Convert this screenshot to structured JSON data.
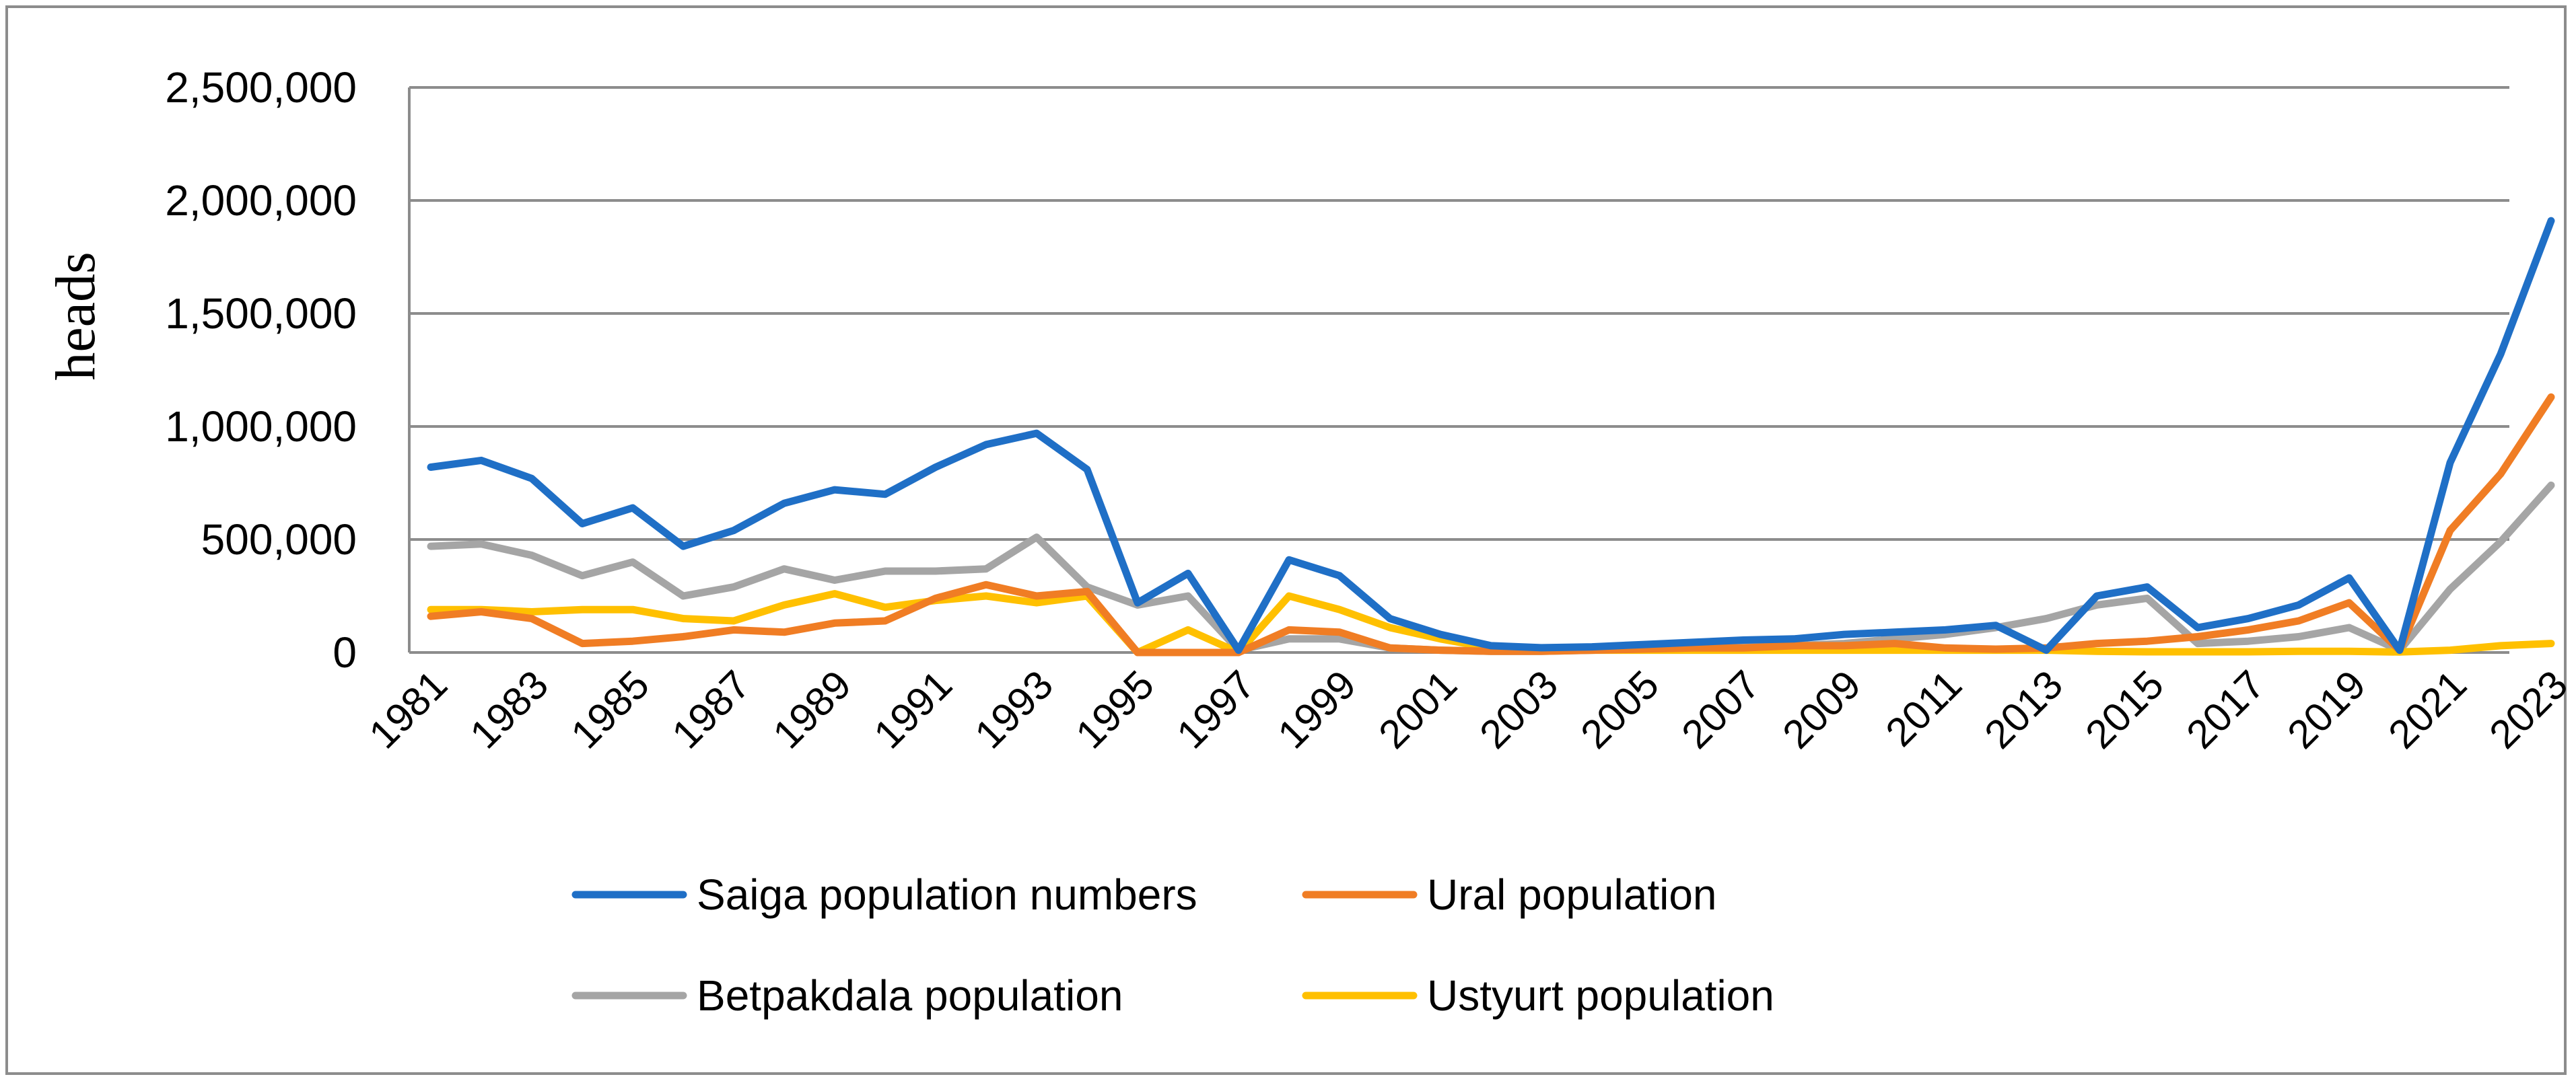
{
  "chart_data": {
    "type": "line",
    "title": "",
    "xlabel": "",
    "ylabel": "heads",
    "ylim": [
      0,
      2500000
    ],
    "y_ticks": [
      0,
      500000,
      1000000,
      1500000,
      2000000,
      2500000
    ],
    "y_tick_labels": [
      "0",
      "500,000",
      "1,000,000",
      "1,500,000",
      "2,000,000",
      "2,500,000"
    ],
    "grid": true,
    "legend_position": "bottom",
    "x": [
      1981,
      1982,
      1983,
      1984,
      1985,
      1986,
      1987,
      1988,
      1989,
      1990,
      1991,
      1992,
      1993,
      1994,
      1995,
      1996,
      1997,
      1998,
      1999,
      2000,
      2001,
      2002,
      2003,
      2004,
      2005,
      2006,
      2007,
      2008,
      2009,
      2010,
      2011,
      2012,
      2013,
      2014,
      2015,
      2016,
      2017,
      2018,
      2019,
      2020,
      2021,
      2022,
      2023
    ],
    "x_tick_labels": [
      "1981",
      "1983",
      "1985",
      "1987",
      "1989",
      "1991",
      "1993",
      "1995",
      "1997",
      "1999",
      "2001",
      "2003",
      "2005",
      "2007",
      "2009",
      "2011",
      "2013",
      "2015",
      "2017",
      "2019",
      "2021",
      "2023"
    ],
    "series": [
      {
        "name": "Saiga population numbers",
        "color": "#1f6fc6",
        "values": [
          820000,
          850000,
          770000,
          570000,
          640000,
          470000,
          540000,
          660000,
          720000,
          700000,
          820000,
          920000,
          970000,
          810000,
          220000,
          350000,
          10000,
          410000,
          340000,
          150000,
          80000,
          30000,
          21000,
          25000,
          35000,
          45000,
          55000,
          60000,
          80000,
          90000,
          100000,
          120000,
          10000,
          250000,
          290000,
          110000,
          150000,
          210000,
          330000,
          10000,
          840000,
          1320000,
          1910000
        ]
      },
      {
        "name": "Ural population",
        "color": "#f07d24",
        "values": [
          160000,
          180000,
          150000,
          40000,
          50000,
          70000,
          100000,
          90000,
          130000,
          140000,
          240000,
          300000,
          250000,
          270000,
          0,
          0,
          0,
          100000,
          90000,
          20000,
          10000,
          5000,
          5000,
          10000,
          15000,
          20000,
          20000,
          30000,
          30000,
          40000,
          20000,
          15000,
          20000,
          40000,
          50000,
          70000,
          100000,
          140000,
          220000,
          10000,
          540000,
          790000,
          1130000
        ]
      },
      {
        "name": "Betpakdala population",
        "color": "#a5a5a5",
        "values": [
          470000,
          480000,
          430000,
          340000,
          400000,
          250000,
          290000,
          370000,
          320000,
          360000,
          360000,
          370000,
          510000,
          290000,
          210000,
          250000,
          10000,
          60000,
          60000,
          20000,
          10000,
          5000,
          5000,
          10000,
          15000,
          20000,
          25000,
          30000,
          40000,
          60000,
          80000,
          110000,
          150000,
          210000,
          240000,
          40000,
          50000,
          70000,
          110000,
          10000,
          280000,
          490000,
          740000
        ]
      },
      {
        "name": "Ustyurt population",
        "color": "#ffc000",
        "values": [
          190000,
          190000,
          180000,
          190000,
          190000,
          150000,
          140000,
          210000,
          260000,
          200000,
          230000,
          250000,
          220000,
          250000,
          0,
          100000,
          0,
          250000,
          190000,
          110000,
          60000,
          20000,
          10000,
          10000,
          10000,
          10000,
          10000,
          10000,
          10000,
          10000,
          10000,
          10000,
          10000,
          5000,
          3000,
          3000,
          3000,
          5000,
          5000,
          2000,
          10000,
          30000,
          40000
        ]
      }
    ]
  }
}
